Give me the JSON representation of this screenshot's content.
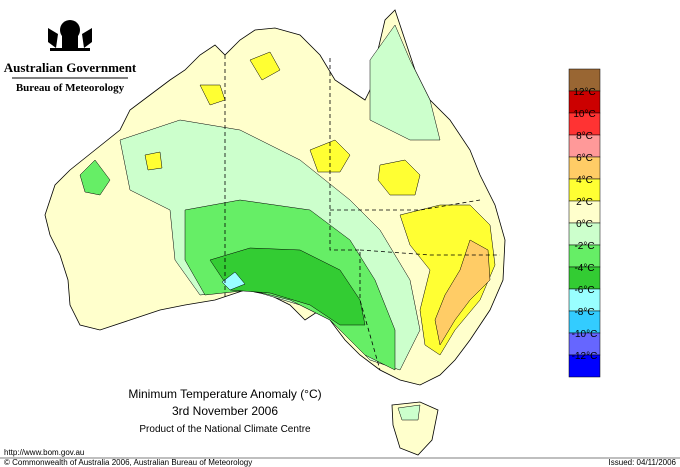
{
  "header": {
    "agency": "Australian Government",
    "bureau": "Bureau of Meteorology"
  },
  "map": {
    "title": "Minimum Temperature Anomaly (°C)",
    "date": "3rd November 2006",
    "product": "Product of the National Climate Centre"
  },
  "legend": {
    "colors": [
      "#996633",
      "#cc0000",
      "#ff3333",
      "#ff9999",
      "#ffcc66",
      "#ffff33",
      "#ffffcc",
      "#ccffcc",
      "#66ee66",
      "#33cc33",
      "#99ffff",
      "#33ccff",
      "#6666ff",
      "#0000ff"
    ],
    "labels": [
      "12°C",
      "10°C",
      "8°C",
      "6°C",
      "4°C",
      "2°C",
      "0°C",
      "-2°C",
      "-4°C",
      "-6°C",
      "-8°C",
      "-10°C",
      "-12°C"
    ]
  },
  "footer": {
    "url": "http://www.bom.gov.au",
    "copyright": "© Commonwealth of Australia 2006, Australian Bureau of Meteorology",
    "issued": "Issued: 04/11/2006"
  }
}
